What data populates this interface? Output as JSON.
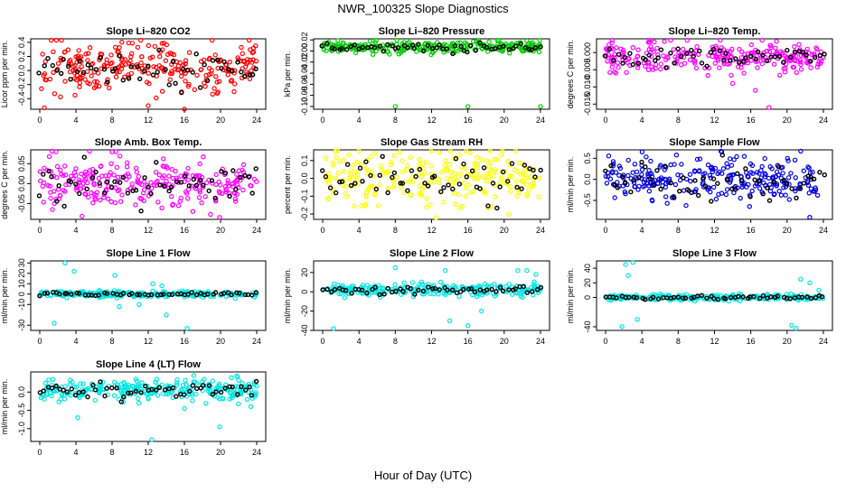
{
  "page": {
    "title": "NWR_100325  Slope Diagnostics",
    "xlabel": "Hour of Day (UTC)"
  },
  "chart_data": [
    {
      "type": "scatter",
      "title": "Slope Li–820 CO2",
      "ylabel": "Licor ppm per min.",
      "ylim": [
        -0.55,
        0.45
      ],
      "yticks": [
        "-0.4",
        "-0.2",
        "0.0",
        "0.2",
        "0.4"
      ],
      "ytick_values": [
        -0.4,
        -0.2,
        0.0,
        0.2,
        0.4
      ],
      "xlim": [
        -1,
        25
      ],
      "xticks": [
        0,
        4,
        8,
        12,
        16,
        20,
        24
      ],
      "color": "#ff0000",
      "center": 0.05,
      "spread": 0.17,
      "count": 260,
      "highlight_center": 0.02,
      "highlight_spread": 0.13,
      "outliers": [
        [
          0.5,
          -0.53
        ],
        [
          3.9,
          -0.35
        ],
        [
          12.0,
          -0.5
        ],
        [
          16.0,
          -0.55
        ],
        [
          21.5,
          -0.3
        ]
      ]
    },
    {
      "type": "scatter",
      "title": "Slope Li–820 Pressure",
      "ylabel": "kPa per min.",
      "ylim": [
        -0.105,
        0.022
      ],
      "yticks": [
        "-0.10",
        "-0.08",
        "-0.06",
        "-0.04",
        "-0.02",
        "0.00",
        "0.02"
      ],
      "ytick_values": [
        -0.1,
        -0.08,
        -0.06,
        -0.04,
        -0.02,
        0.0,
        0.02
      ],
      "xlim": [
        -1,
        25
      ],
      "xticks": [
        0,
        4,
        8,
        12,
        16,
        20,
        24
      ],
      "color": "#00cc00",
      "center": 0.007,
      "spread": 0.005,
      "count": 260,
      "highlight_center": 0.006,
      "highlight_spread": 0.004,
      "outliers": [
        [
          8.0,
          -0.1
        ],
        [
          16.0,
          -0.1
        ],
        [
          24.0,
          -0.1
        ]
      ]
    },
    {
      "type": "scatter",
      "title": "Slope Li–820 Temp.",
      "ylabel": "degrees C per min.",
      "ylim": [
        -0.0165,
        0.004
      ],
      "yticks": [
        "-0.015",
        "-0.010",
        "-0.005",
        "0.000"
      ],
      "ytick_values": [
        -0.015,
        -0.01,
        -0.005,
        0.0
      ],
      "xlim": [
        -1,
        25
      ],
      "xticks": [
        0,
        4,
        8,
        12,
        16,
        20,
        24
      ],
      "color": "#ff00ff",
      "center": -0.001,
      "spread": 0.0022,
      "count": 260,
      "highlight_center": -0.001,
      "highlight_spread": 0.0015,
      "outliers": [
        [
          18.0,
          -0.016
        ],
        [
          16.5,
          -0.011
        ],
        [
          14.0,
          -0.009
        ]
      ]
    },
    {
      "type": "scatter",
      "title": "Slope Amb. Box Temp.",
      "ylabel": "degrees C per min.",
      "ylim": [
        -0.09,
        0.085
      ],
      "yticks": [
        "-0.05",
        "0.00",
        "0.05"
      ],
      "ytick_values": [
        -0.05,
        0.0,
        0.05
      ],
      "xlim": [
        -1,
        25
      ],
      "xticks": [
        0,
        4,
        8,
        12,
        16,
        20,
        24
      ],
      "color": "#ff00ff",
      "center": 0.0,
      "spread": 0.03,
      "count": 260,
      "highlight_center": 0.0,
      "highlight_spread": 0.025,
      "outliers": [
        [
          8.0,
          0.08
        ],
        [
          19.9,
          -0.085
        ]
      ]
    },
    {
      "type": "scatter",
      "title": "Slope Gas Stream RH",
      "ylabel": "percent per min.",
      "ylim": [
        -0.23,
        0.16
      ],
      "yticks": [
        "-0.2",
        "-0.1",
        "0.0",
        "0.1"
      ],
      "ytick_values": [
        -0.2,
        -0.1,
        0.0,
        0.1
      ],
      "xlim": [
        -1,
        25
      ],
      "xticks": [
        0,
        4,
        8,
        12,
        16,
        20,
        24
      ],
      "color": "#ffff00",
      "center": 0.0,
      "spread": 0.07,
      "count": 260,
      "highlight_center": -0.01,
      "highlight_spread": 0.06,
      "outliers": [
        [
          12.5,
          -0.22
        ],
        [
          20.5,
          -0.2
        ]
      ]
    },
    {
      "type": "scatter",
      "title": "Slope Sample Flow",
      "ylabel": "ml/min per min.",
      "ylim": [
        -0.95,
        0.7
      ],
      "yticks": [
        "-0.5",
        "0.0",
        "0.5"
      ],
      "ytick_values": [
        -0.5,
        0.0,
        0.5
      ],
      "xlim": [
        -1,
        25
      ],
      "xticks": [
        0,
        4,
        8,
        12,
        16,
        20,
        24
      ],
      "color": "#0000dd",
      "center": 0.0,
      "spread": 0.25,
      "count": 270,
      "highlight_center": -0.05,
      "highlight_spread": 0.25,
      "outliers": [
        [
          12.8,
          0.65
        ],
        [
          22.5,
          -0.9
        ]
      ]
    },
    {
      "type": "scatter",
      "title": "Slope Line 1 Flow",
      "ylabel": "ml/min per min.",
      "ylim": [
        -35,
        32
      ],
      "yticks": [
        "-30",
        "-10",
        "0",
        "10",
        "20",
        "30"
      ],
      "ytick_values": [
        -30,
        -10,
        0,
        10,
        20,
        30
      ],
      "xlim": [
        -1,
        25
      ],
      "xticks": [
        0,
        4,
        8,
        12,
        16,
        20,
        24
      ],
      "color": "#00e5e5",
      "center": 0.0,
      "spread": 1.5,
      "count": 240,
      "highlight_center": 0.0,
      "highlight_spread": 0.8,
      "outliers": [
        [
          2.8,
          30
        ],
        [
          3.8,
          22
        ],
        [
          1.6,
          -28
        ],
        [
          8.3,
          18
        ],
        [
          16.3,
          -33
        ],
        [
          14.0,
          -20
        ],
        [
          12.5,
          10
        ],
        [
          13.5,
          8
        ],
        [
          8.8,
          -12
        ],
        [
          11.0,
          -10
        ]
      ]
    },
    {
      "type": "scatter",
      "title": "Slope Line 2 Flow",
      "ylabel": "ml/min per min.",
      "ylim": [
        -40,
        32
      ],
      "yticks": [
        "-40",
        "-20",
        "0",
        "20"
      ],
      "ytick_values": [
        -40,
        -20,
        0,
        20
      ],
      "xlim": [
        -1,
        25
      ],
      "xticks": [
        0,
        4,
        8,
        12,
        16,
        20,
        24
      ],
      "color": "#00e5e5",
      "center": 2.0,
      "spread": 3.0,
      "count": 250,
      "highlight_center": 2.0,
      "highlight_spread": 2.0,
      "outliers": [
        [
          1.2,
          -38
        ],
        [
          8.0,
          25
        ],
        [
          13.5,
          22
        ],
        [
          14.0,
          -30
        ],
        [
          16.0,
          -35
        ],
        [
          17.5,
          -20
        ],
        [
          13.0,
          10
        ],
        [
          21.5,
          22
        ],
        [
          22.5,
          22
        ],
        [
          23.5,
          18
        ]
      ]
    },
    {
      "type": "scatter",
      "title": "Slope Line 3 Flow",
      "ylabel": "ml/min per min.",
      "ylim": [
        -45,
        50
      ],
      "yticks": [
        "-40",
        "0",
        "20",
        "40"
      ],
      "ytick_values": [
        -40,
        0,
        20,
        40
      ],
      "xlim": [
        -1,
        25
      ],
      "xticks": [
        0,
        4,
        8,
        12,
        16,
        20,
        24
      ],
      "color": "#00e5e5",
      "center": 0.0,
      "spread": 2.0,
      "count": 240,
      "highlight_center": 0.0,
      "highlight_spread": 1.5,
      "outliers": [
        [
          2.2,
          45
        ],
        [
          3.0,
          48
        ],
        [
          2.5,
          30
        ],
        [
          1.8,
          -40
        ],
        [
          20.5,
          -38
        ],
        [
          21.0,
          -42
        ],
        [
          21.5,
          25
        ],
        [
          22.5,
          20
        ],
        [
          23.5,
          10
        ],
        [
          3.5,
          -30
        ]
      ]
    },
    {
      "type": "scatter",
      "title": "Slope Line 4 (LT) Flow",
      "ylabel": "ml/min per min.",
      "ylim": [
        -1.35,
        0.55
      ],
      "yticks": [
        "-1.0",
        "-0.5",
        "0.0"
      ],
      "ytick_values": [
        -1.0,
        -0.5,
        0.0
      ],
      "xlim": [
        -1,
        25
      ],
      "xticks": [
        0,
        4,
        8,
        12,
        16,
        20,
        24
      ],
      "color": "#00e5e5",
      "center": 0.05,
      "spread": 0.15,
      "count": 260,
      "highlight_center": 0.05,
      "highlight_spread": 0.12,
      "outliers": [
        [
          12.4,
          -1.3
        ],
        [
          19.9,
          -0.95
        ],
        [
          4.2,
          -0.7
        ],
        [
          16.0,
          -0.45
        ]
      ]
    }
  ]
}
